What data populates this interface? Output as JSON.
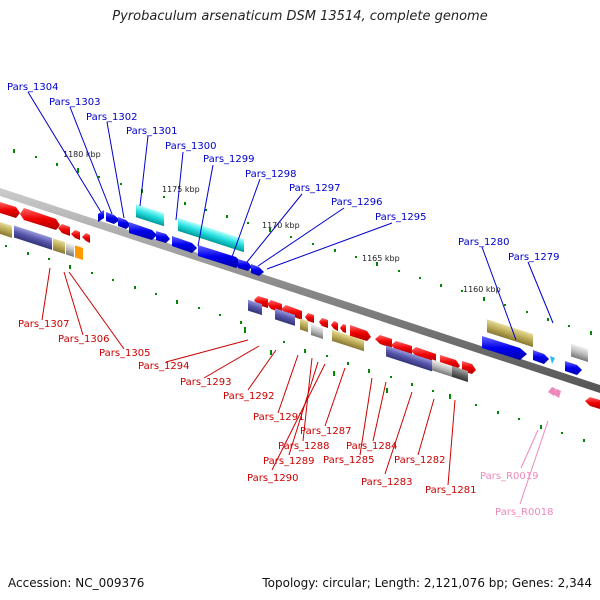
{
  "title": "Pyrobaculum arsenaticum DSM 13514, complete genome",
  "footer": {
    "accession": "Accession: NC_009376",
    "summary": "Topology: circular; Length: 2,121,076 bp; Genes: 2,344"
  },
  "scale_ticks": [
    "1180 kbp",
    "1175 kbp",
    "1170 kbp",
    "1165 kbp",
    "1160 kbp"
  ],
  "colors": {
    "forward_label": "#0000cc",
    "reverse_label": "#cc0000",
    "rna_label": "#ee88bb",
    "backbone": "#888888"
  },
  "genes_top": [
    "Pars_1304",
    "Pars_1303",
    "Pars_1302",
    "Pars_1301",
    "Pars_1300",
    "Pars_1299",
    "Pars_1298",
    "Pars_1297",
    "Pars_1296",
    "Pars_1295",
    "Pars_1280",
    "Pars_1279"
  ],
  "genes_bottom": [
    "Pars_1307",
    "Pars_1306",
    "Pars_1305",
    "Pars_1294",
    "Pars_1293",
    "Pars_1292",
    "Pars_1291",
    "Pars_1288",
    "Pars_1289",
    "Pars_1290",
    "Pars_1287",
    "Pars_1285",
    "Pars_1284",
    "Pars_1283",
    "Pars_1282",
    "Pars_1281"
  ],
  "genes_rna": [
    "Pars_R0019",
    "Pars_R0018"
  ]
}
